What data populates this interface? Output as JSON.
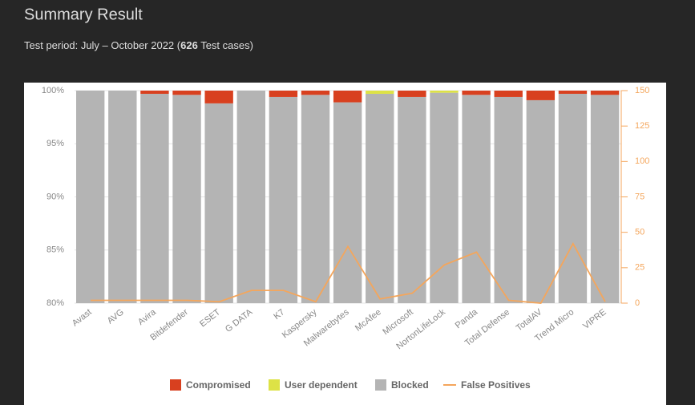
{
  "header": {
    "title": "Summary Result",
    "subtitle_start": "Test period: July – October 2022 (",
    "subtitle_count": "626",
    "subtitle_end": " Test cases)"
  },
  "chart_data": {
    "type": "bar",
    "stacked": true,
    "categories": [
      "Avast",
      "AVG",
      "Avira",
      "Bitdefender",
      "ESET",
      "G DATA",
      "K7",
      "Kaspersky",
      "Malwarebytes",
      "McAfee",
      "Microsoft",
      "NortonLifeLock",
      "Panda",
      "Total Defense",
      "TotalAV",
      "Trend Micro",
      "VIPRE"
    ],
    "series": [
      {
        "name": "Blocked",
        "color": "#b4b4b4",
        "values": [
          100,
          100,
          99.7,
          99.6,
          98.8,
          100,
          99.4,
          99.6,
          98.9,
          99.7,
          99.4,
          99.8,
          99.6,
          99.4,
          99.1,
          99.7,
          99.6
        ]
      },
      {
        "name": "User dependent",
        "color": "#dde246",
        "values": [
          0,
          0,
          0,
          0,
          0,
          0,
          0,
          0,
          0,
          0.3,
          0,
          0.2,
          0,
          0,
          0,
          0,
          0
        ]
      },
      {
        "name": "Compromised",
        "color": "#d8401f",
        "values": [
          0,
          0,
          0.3,
          0.4,
          1.2,
          0,
          0.6,
          0.4,
          1.1,
          0,
          0.6,
          0,
          0.4,
          0.6,
          0.9,
          0.3,
          0.4
        ]
      },
      {
        "name": "False Positives",
        "color": "#f4a65c",
        "type": "line",
        "axis": "y2",
        "values": [
          2,
          2,
          2,
          2,
          1,
          9,
          9,
          1,
          40,
          3,
          7,
          27,
          36,
          2,
          0,
          42,
          1
        ]
      }
    ],
    "legend_order": [
      2,
      1,
      0,
      3
    ],
    "ylim": [
      80,
      100
    ],
    "yticks": [
      {
        "value": 80,
        "label": "80%"
      },
      {
        "value": 85,
        "label": "85%"
      },
      {
        "value": 90,
        "label": "90%"
      },
      {
        "value": 95,
        "label": "95%"
      },
      {
        "value": 100,
        "label": "100%"
      }
    ],
    "y2lim": [
      0,
      150
    ],
    "y2ticks": [
      0,
      25,
      50,
      75,
      100,
      125,
      150
    ],
    "grid": true
  }
}
